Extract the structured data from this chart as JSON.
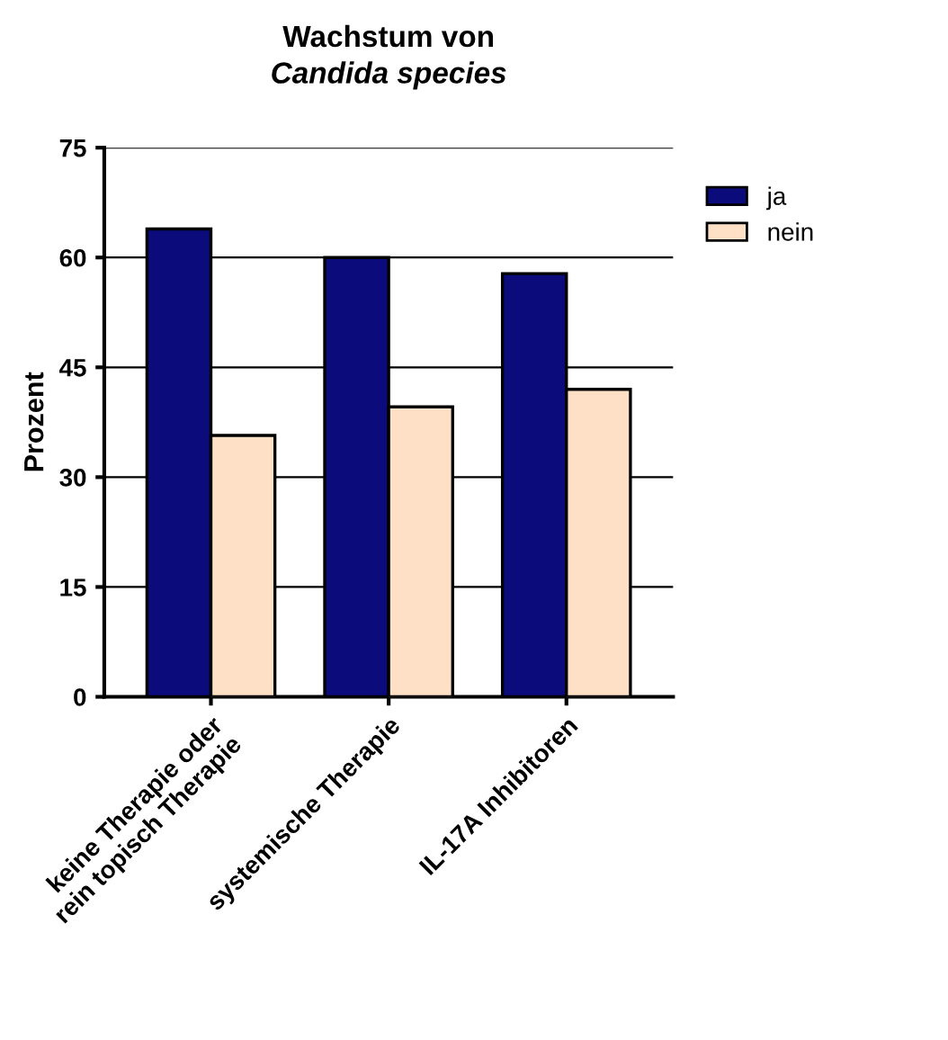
{
  "chart_data": {
    "type": "bar",
    "title": "Wachstum von",
    "subtitle": "Candida species",
    "ylabel": "Prozent",
    "categories": [
      "keine Therapie oder\nrein topisch Therapie",
      "systemische Therapie",
      "IL-17A Inhibitoren"
    ],
    "series": [
      {
        "name": "ja",
        "color": "#0b0b7c",
        "values": [
          63.9,
          60.0,
          57.8
        ]
      },
      {
        "name": "nein",
        "color": "#fde0c5",
        "values": [
          35.7,
          39.6,
          42.0
        ]
      }
    ],
    "ylim": [
      0,
      75
    ],
    "yticks": [
      0,
      15,
      30,
      45,
      60,
      75
    ],
    "grid": "y",
    "legend": "top right"
  }
}
